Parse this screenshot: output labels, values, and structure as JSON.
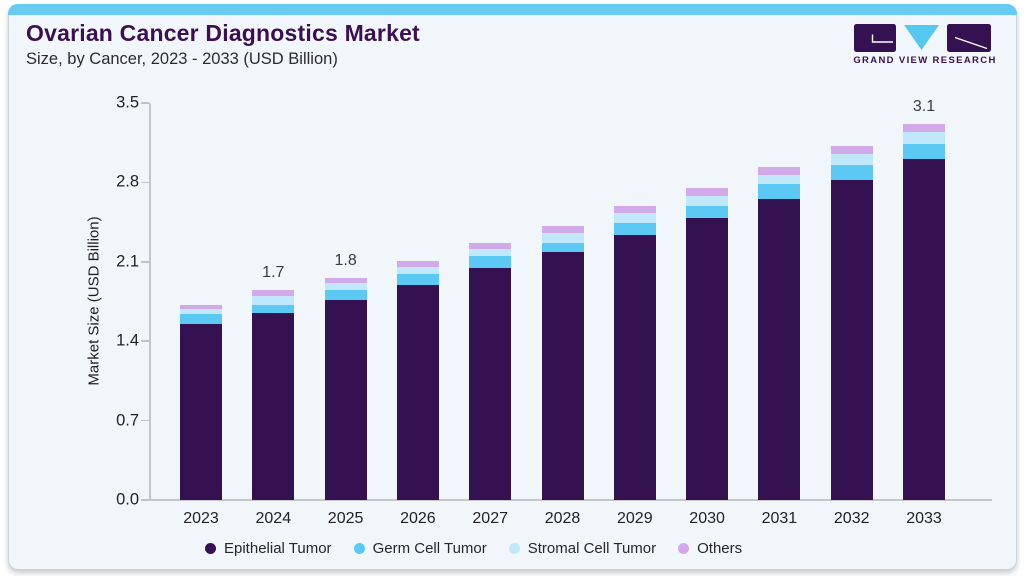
{
  "page": {
    "title": "Ovarian Cancer Diagnostics Market",
    "subtitle": "Size, by Cancer, 2023 - 2033 (USD Billion)"
  },
  "logo": {
    "text": "GRAND VIEW RESEARCH"
  },
  "theme": {
    "topbar_color": "#68ccf2",
    "title_color": "#3b1053",
    "card_bg": "#f1f6fa",
    "axis_color": "#c6c6c6"
  },
  "chart_data": {
    "type": "bar",
    "stacked": true,
    "title": "Ovarian Cancer Diagnostics Market",
    "subtitle": "Size, by Cancer, 2023 - 2033 (USD Billion)",
    "ylabel": "Market Size (USD Billion)",
    "ylim": [
      0,
      3.5
    ],
    "yticks": [
      "3.5",
      "2.8",
      "2.1",
      "1.4",
      "0.7",
      "0.0"
    ],
    "grid": false,
    "legend_position": "bottom",
    "categories": [
      "2023",
      "2024",
      "2025",
      "2026",
      "2027",
      "2028",
      "2029",
      "2030",
      "2031",
      "2032",
      "2033"
    ],
    "series": [
      {
        "name": "Epithelial Tumor",
        "color": "#341151",
        "values": [
          1.45,
          1.54,
          1.65,
          1.77,
          1.91,
          2.04,
          2.18,
          2.32,
          2.48,
          2.64,
          2.81
        ]
      },
      {
        "name": "Germ Cell Tumor",
        "color": "#5bc9f4",
        "values": [
          0.08,
          0.07,
          0.08,
          0.09,
          0.1,
          0.08,
          0.1,
          0.1,
          0.12,
          0.12,
          0.12
        ]
      },
      {
        "name": "Stromal Cell Tumor",
        "color": "#c1e7fa",
        "values": [
          0.04,
          0.07,
          0.06,
          0.06,
          0.06,
          0.08,
          0.08,
          0.08,
          0.08,
          0.09,
          0.1
        ]
      },
      {
        "name": "Others",
        "color": "#d2a9e9",
        "values": [
          0.04,
          0.05,
          0.04,
          0.05,
          0.05,
          0.06,
          0.06,
          0.07,
          0.06,
          0.07,
          0.07
        ]
      }
    ],
    "bar_labels": [
      "",
      "1.7",
      "1.8",
      "",
      "",
      "",
      "",
      "",
      "",
      "",
      "3.1"
    ],
    "totals": [
      1.6,
      1.7,
      1.8,
      2.0,
      2.1,
      2.3,
      2.4,
      2.6,
      2.7,
      2.9,
      3.1
    ]
  }
}
